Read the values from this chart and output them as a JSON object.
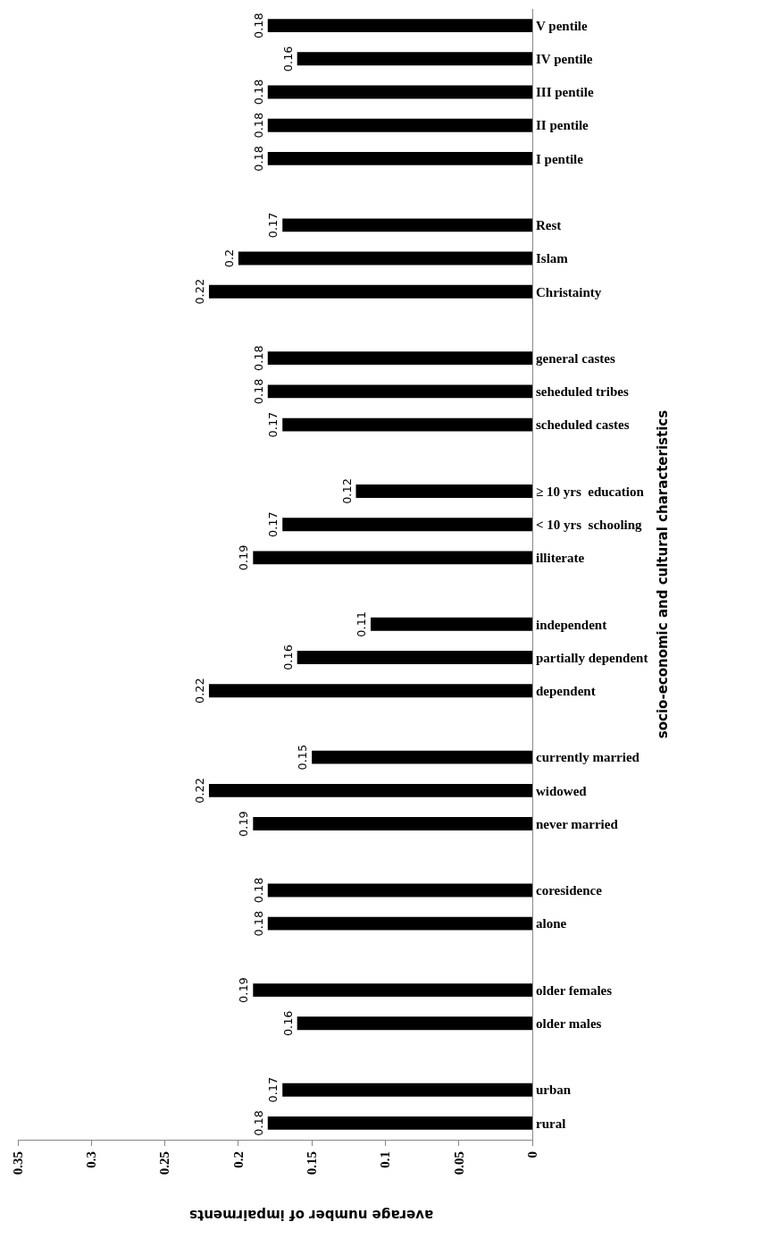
{
  "chart_data": {
    "type": "bar",
    "orientation": "horizontal",
    "xlabel": "average number of impairments",
    "ylabel": "socio-economic and cultural characteristics",
    "categories": [
      "V pentile",
      "IV pentile",
      "III pentile",
      "II pentile",
      "I pentile",
      null,
      "Rest",
      "Islam",
      "Christainty",
      null,
      "general castes",
      "seheduled tribes",
      "scheduled castes",
      null,
      "≥ 10 yrs  education",
      "< 10 yrs  schooling",
      "illiterate",
      null,
      "independent",
      "partially dependent",
      "dependent",
      null,
      "currently married",
      "widowed",
      "never married",
      null,
      "coresidence",
      "alone",
      null,
      "older females",
      "older males",
      null,
      "urban",
      "rural"
    ],
    "values": [
      0.18,
      0.16,
      0.18,
      0.18,
      0.18,
      null,
      0.17,
      0.2,
      0.22,
      null,
      0.18,
      0.18,
      0.17,
      null,
      0.12,
      0.17,
      0.19,
      null,
      0.11,
      0.16,
      0.22,
      null,
      0.15,
      0.22,
      0.19,
      null,
      0.18,
      0.18,
      null,
      0.19,
      0.16,
      null,
      0.17,
      0.18
    ],
    "color": "#000000",
    "data_labels": true,
    "grid": false,
    "legend": false,
    "xlim": [
      0.35,
      0
    ],
    "xticks": [
      0.35,
      0.3,
      0.25,
      0.2,
      0.15,
      0.1,
      0.05,
      0
    ]
  }
}
